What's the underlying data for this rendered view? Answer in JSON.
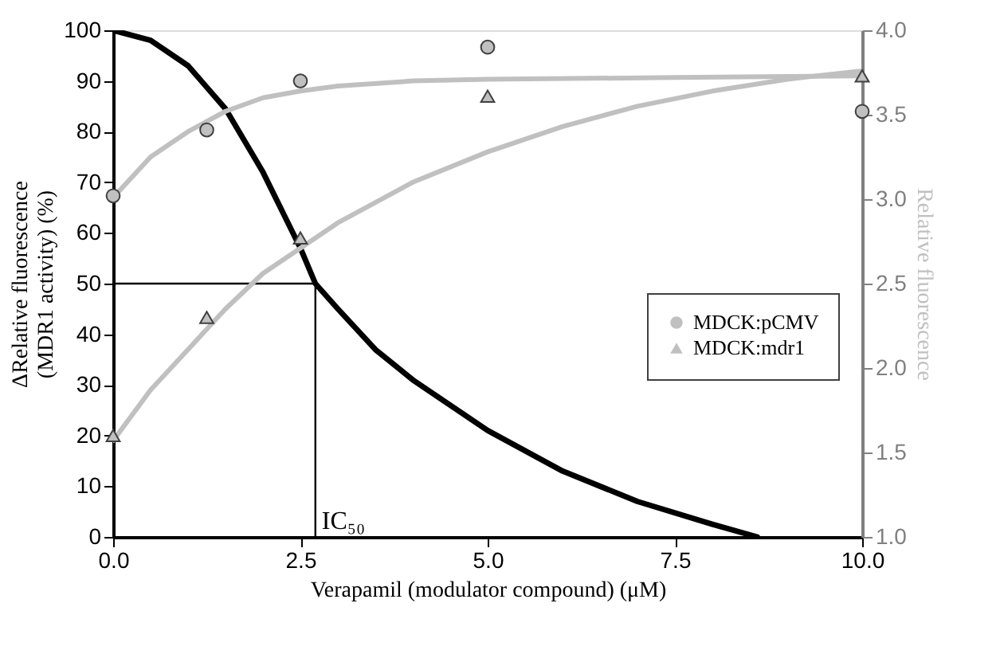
{
  "chart_data": {
    "type": "line",
    "xlabel": "Verapamil (modulator compound) (μM)",
    "ylabel": "ΔRelative fluorescence\n(MDR1 activity) (%)",
    "y2label": "Relative fluorescence",
    "xlim": [
      0,
      10
    ],
    "xticks": [
      {
        "value": 0,
        "label": "0.0"
      },
      {
        "value": 2.5,
        "label": "2.5"
      },
      {
        "value": 5,
        "label": "5.0"
      },
      {
        "value": 7.5,
        "label": "7.5"
      },
      {
        "value": 10,
        "label": "10.0"
      }
    ],
    "ylim": [
      0,
      100
    ],
    "yticks": [
      0,
      10,
      20,
      30,
      40,
      50,
      60,
      70,
      80,
      90,
      100
    ],
    "y2lim": [
      1,
      4
    ],
    "y2ticks": [
      {
        "value": 1,
        "label": "1.0"
      },
      {
        "value": 1.5,
        "label": "1.5"
      },
      {
        "value": 2,
        "label": "2.0"
      },
      {
        "value": 2.5,
        "label": "2.5"
      },
      {
        "value": 3,
        "label": "3.0"
      },
      {
        "value": 3.5,
        "label": "3.5"
      },
      {
        "value": 4,
        "label": "4.0"
      }
    ],
    "grid": false,
    "legend": "right",
    "line_style": "solid",
    "annotations": [
      {
        "text": "IC₅₀",
        "x": 2.7,
        "y": 0
      }
    ],
    "series": [
      {
        "type": "line",
        "axis": "y",
        "color": "#000000",
        "marker": "none",
        "x": [
          0,
          0.5,
          1,
          1.5,
          2,
          2.5,
          2.7,
          3,
          3.5,
          4,
          5,
          6,
          7,
          8,
          8.6
        ],
        "values": [
          100,
          98,
          93,
          84.5,
          72,
          57,
          50,
          45,
          37,
          31,
          21,
          13,
          7,
          2.5,
          0
        ]
      },
      {
        "type": "line",
        "axis": "y",
        "color": "#000000",
        "marker": "none",
        "x": [
          0,
          2.7,
          2.7
        ],
        "values": [
          50,
          50,
          0
        ]
      },
      {
        "type": "line",
        "axis": "y2",
        "color": "#c0c0c0",
        "marker": "none",
        "x": [
          0,
          0.5,
          1,
          1.5,
          2,
          2.5,
          3,
          4,
          5,
          7.5,
          10
        ],
        "values": [
          3.01,
          3.25,
          3.4,
          3.52,
          3.6,
          3.64,
          3.67,
          3.7,
          3.71,
          3.72,
          3.73
        ]
      },
      {
        "type": "line",
        "axis": "y2",
        "color": "#c0c0c0",
        "marker": "none",
        "x": [
          0,
          0.5,
          1,
          1.5,
          2,
          2.5,
          3,
          4,
          5,
          6,
          7,
          8,
          9,
          10
        ],
        "values": [
          1.57,
          1.87,
          2.11,
          2.35,
          2.56,
          2.71,
          2.86,
          3.1,
          3.28,
          3.43,
          3.55,
          3.64,
          3.71,
          3.76
        ]
      },
      {
        "type": "scatter",
        "axis": "y2",
        "name": "MDCK:pCMV",
        "color": "#c0c0c0",
        "marker": "circle",
        "x": [
          0,
          1.25,
          2.5,
          5,
          10
        ],
        "values": [
          3.02,
          3.41,
          3.7,
          3.9,
          3.52
        ]
      },
      {
        "type": "scatter",
        "axis": "y2",
        "name": "MDCK:mdr1",
        "color": "#c0c0c0",
        "marker": "triangle",
        "x": [
          0,
          1.25,
          2.5,
          5,
          10
        ],
        "values": [
          1.6,
          2.3,
          2.77,
          3.61,
          3.73
        ]
      }
    ]
  }
}
